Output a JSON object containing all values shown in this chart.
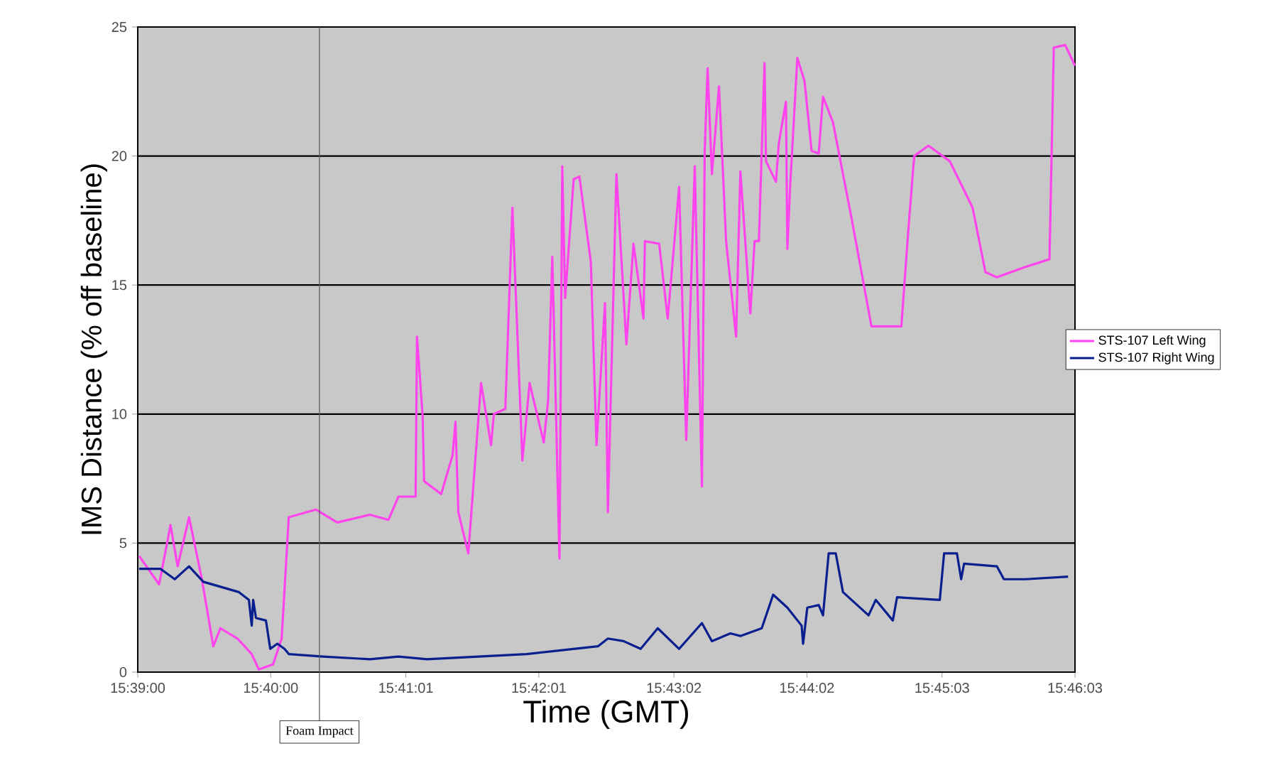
{
  "chart_data": {
    "type": "line",
    "xlabel": "Time (GMT)",
    "ylabel": "IMS Distance (% off baseline)",
    "xlim": [
      15.65,
      15.7675
    ],
    "ylim": [
      0,
      25
    ],
    "xticks": [
      {
        "value": 15.65,
        "label": "15:39:00"
      },
      {
        "value": 15.66667,
        "label": "15:40:00"
      },
      {
        "value": 15.68361,
        "label": "15:41:01"
      },
      {
        "value": 15.70028,
        "label": "15:42:01"
      },
      {
        "value": 15.71722,
        "label": "15:43:02"
      },
      {
        "value": 15.73389,
        "label": "15:44:02"
      },
      {
        "value": 15.75083,
        "label": "15:45:03"
      },
      {
        "value": 15.7675,
        "label": "15:46:03"
      }
    ],
    "yticks": [
      0,
      5,
      10,
      15,
      20,
      25
    ],
    "grid": "y",
    "legend": "right",
    "marker": "none",
    "line_style": "solid",
    "ref_lines": [
      {
        "axis": "x",
        "value": 15.67278,
        "label": "Foam Impact",
        "color": "#555555"
      }
    ],
    "series": [
      {
        "name": "STS-107 Left Wing",
        "color": "#ff44ee",
        "x": [
          15.65018,
          15.65268,
          15.65411,
          15.655,
          15.65643,
          15.65804,
          15.65947,
          15.66036,
          15.6625,
          15.66429,
          15.66518,
          15.66697,
          15.66804,
          15.66893,
          15.67233,
          15.675,
          15.67911,
          15.68143,
          15.68268,
          15.68483,
          15.68501,
          15.68572,
          15.6859,
          15.68804,
          15.68947,
          15.68983,
          15.69019,
          15.69144,
          15.69304,
          15.69429,
          15.69465,
          15.69608,
          15.69697,
          15.69822,
          15.69912,
          15.7009,
          15.70144,
          15.70197,
          15.70287,
          15.70322,
          15.70358,
          15.70465,
          15.70537,
          15.7068,
          15.70751,
          15.70858,
          15.70894,
          15.71001,
          15.71126,
          15.71215,
          15.7134,
          15.71358,
          15.71537,
          15.71644,
          15.71787,
          15.71876,
          15.71983,
          15.72073,
          15.72108,
          15.72144,
          15.72198,
          15.72287,
          15.72376,
          15.72501,
          15.72555,
          15.7268,
          15.72733,
          15.72787,
          15.72858,
          15.72876,
          15.73001,
          15.73037,
          15.73126,
          15.73144,
          15.7318,
          15.73269,
          15.73359,
          15.73448,
          15.73537,
          15.73591,
          15.73716,
          15.73948,
          15.74198,
          15.74573,
          15.74662,
          15.74734,
          15.74912,
          15.7518,
          15.75466,
          15.75627,
          15.7577,
          15.76127,
          15.7643,
          15.76484,
          15.76627,
          15.7675
        ],
        "values": [
          4.5,
          3.4,
          5.7,
          4.1,
          6.0,
          3.6,
          1.0,
          1.7,
          1.3,
          0.7,
          0.1,
          0.3,
          1.3,
          6.0,
          6.3,
          5.8,
          6.1,
          5.9,
          6.8,
          6.8,
          13.0,
          9.9,
          7.4,
          6.9,
          8.4,
          9.7,
          6.2,
          4.6,
          11.2,
          8.8,
          10.0,
          10.2,
          18.0,
          8.2,
          11.2,
          8.9,
          10.5,
          16.1,
          4.4,
          19.6,
          14.5,
          19.1,
          19.2,
          15.9,
          8.8,
          14.3,
          6.2,
          19.3,
          12.7,
          16.6,
          13.7,
          16.7,
          16.6,
          13.7,
          18.8,
          9.0,
          19.6,
          7.2,
          20.2,
          23.4,
          19.3,
          22.7,
          16.7,
          13.0,
          19.4,
          13.9,
          16.7,
          16.7,
          23.6,
          19.8,
          19.0,
          20.5,
          22.1,
          16.4,
          18.9,
          23.8,
          22.9,
          20.2,
          20.1,
          22.3,
          21.3,
          17.6,
          13.4,
          13.4,
          17.2,
          20.0,
          20.4,
          19.8,
          18.0,
          15.5,
          15.3,
          15.7,
          16.0,
          24.2,
          24.3,
          23.5
        ]
      },
      {
        "name": "STS-107 Right Wing",
        "color": "#0a1f8f",
        "x": [
          15.65018,
          15.65286,
          15.65464,
          15.65643,
          15.65822,
          15.66268,
          15.66393,
          15.66429,
          15.66447,
          15.66482,
          15.66607,
          15.66661,
          15.6675,
          15.6684,
          15.66893,
          15.67322,
          15.67911,
          15.68268,
          15.68626,
          15.69876,
          15.70769,
          15.70894,
          15.7109,
          15.71305,
          15.71519,
          15.71787,
          15.72073,
          15.72198,
          15.7243,
          15.72555,
          15.72823,
          15.72966,
          15.73144,
          15.73323,
          15.73341,
          15.73394,
          15.73537,
          15.73591,
          15.73662,
          15.73751,
          15.73841,
          15.74162,
          15.74252,
          15.74466,
          15.74519,
          15.75055,
          15.75109,
          15.7527,
          15.75323,
          15.75359,
          15.7577,
          15.75859,
          15.76127,
          15.76663
        ],
        "values": [
          4.0,
          4.0,
          3.6,
          4.1,
          3.5,
          3.1,
          2.8,
          1.8,
          2.8,
          2.1,
          2.0,
          0.9,
          1.1,
          0.9,
          0.7,
          0.6,
          0.5,
          0.6,
          0.5,
          0.7,
          1.0,
          1.3,
          1.2,
          0.9,
          1.7,
          0.9,
          1.9,
          1.2,
          1.5,
          1.4,
          1.7,
          3.0,
          2.5,
          1.8,
          1.1,
          2.5,
          2.6,
          2.2,
          4.6,
          4.6,
          3.1,
          2.2,
          2.8,
          2.0,
          2.9,
          2.8,
          4.6,
          4.6,
          3.6,
          4.2,
          4.1,
          3.6,
          3.6,
          3.7
        ]
      }
    ]
  }
}
